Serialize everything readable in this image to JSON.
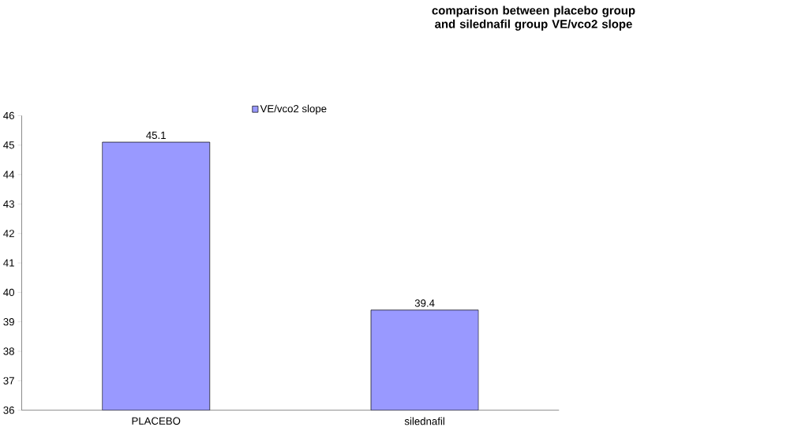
{
  "chart_data": {
    "type": "bar",
    "title": "comparison between placebo group and silednafil group VE/vco2 slope",
    "categories": [
      "PLACEBO",
      "silednafil"
    ],
    "series": [
      {
        "name": "VE/vco2 slope",
        "color": "#9999ff",
        "values": [
          45.1,
          39.4
        ]
      }
    ],
    "ylim": [
      36,
      46
    ],
    "yticks": [
      36,
      37,
      38,
      39,
      40,
      41,
      42,
      43,
      44,
      45,
      46
    ],
    "data_labels": true,
    "legend": "top",
    "grid": false
  }
}
